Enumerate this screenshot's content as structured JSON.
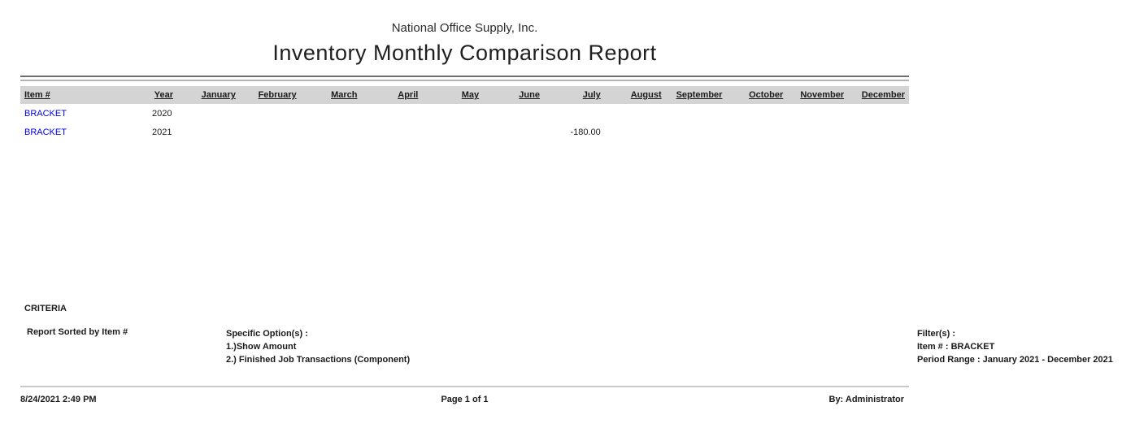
{
  "report": {
    "company": "National Office Supply, Inc.",
    "title": "Inventory Monthly Comparison Report"
  },
  "table": {
    "columns": {
      "item": "Item #",
      "year": "Year",
      "months": [
        "January",
        "February",
        "March",
        "April",
        "May",
        "June",
        "July",
        "August",
        "September",
        "October",
        "November",
        "December"
      ]
    },
    "rows": [
      {
        "item": "BRACKET",
        "year": "2020",
        "values": [
          "",
          "",
          "",
          "",
          "",
          "",
          "",
          "",
          "",
          "",
          "",
          ""
        ]
      },
      {
        "item": "BRACKET",
        "year": "2021",
        "values": [
          "",
          "",
          "",
          "",
          "",
          "",
          "-180.00",
          "",
          "",
          "",
          "",
          ""
        ]
      }
    ]
  },
  "criteria": {
    "heading": "CRITERIA",
    "sorted_by": "Report Sorted by Item #",
    "options_label": "Specific Option(s) :",
    "options": [
      "1.)Show Amount",
      "2.) Finished Job Transactions (Component)"
    ],
    "filters_label": "Filter(s) :",
    "filters": [
      "Item # : BRACKET",
      "Period Range : January 2021 - December 2021"
    ]
  },
  "footer": {
    "datetime": "8/24/2021 2:49 PM",
    "page": "Page 1 of 1",
    "by": "By: Administrator"
  },
  "colors": {
    "link_blue": "#0000EE",
    "header_band": "#D4D4D4",
    "rule_dark": "#6E6E6E",
    "rule_light": "#B4B4B4",
    "footer_rule": "#C9C9C9",
    "text": "#1A1A1A"
  }
}
